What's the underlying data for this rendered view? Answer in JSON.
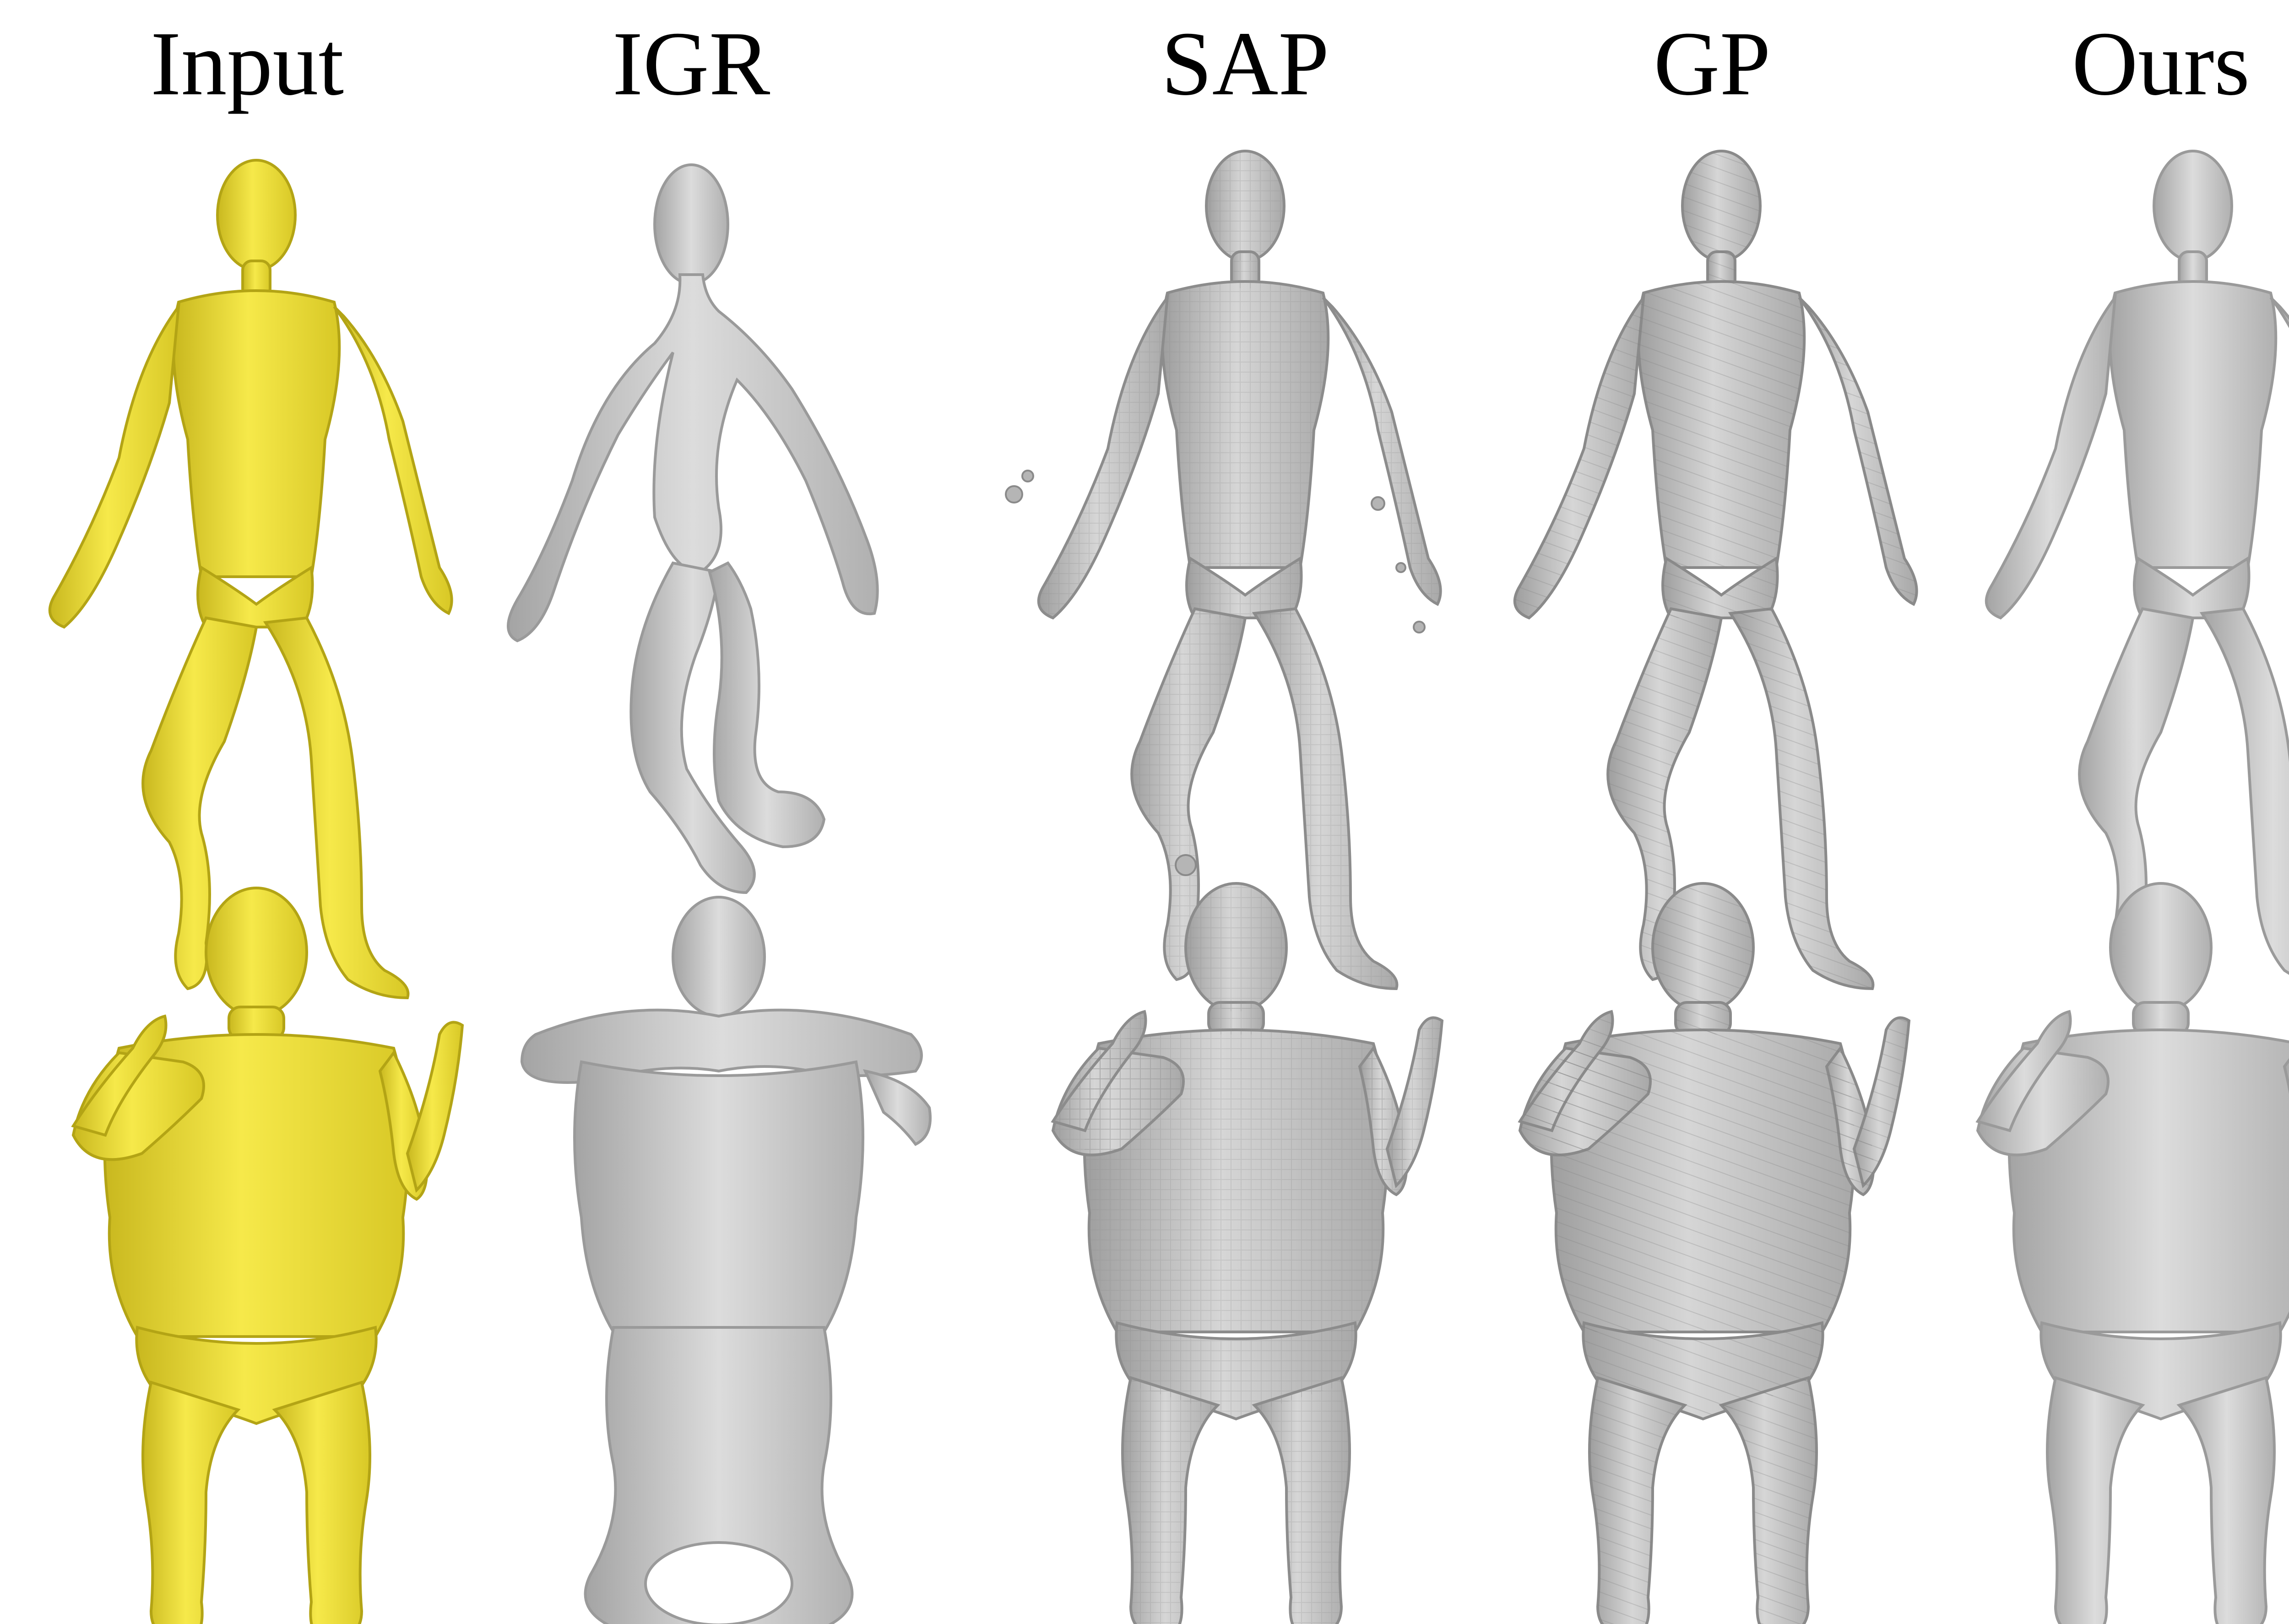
{
  "columns": [
    {
      "title": "Input"
    },
    {
      "title": "IGR"
    },
    {
      "title": "SAP"
    },
    {
      "title": "GP"
    },
    {
      "title": "Ours"
    }
  ],
  "colors": {
    "input_mesh": "#f2e33a",
    "input_mesh_shadow": "#c9b81f",
    "gray_mesh": "#c8c8c8",
    "gray_mesh_shadow": "#9a9a9a",
    "smooth_mesh": "#cfcfcf",
    "smooth_mesh_shadow": "#a0a0a0"
  }
}
